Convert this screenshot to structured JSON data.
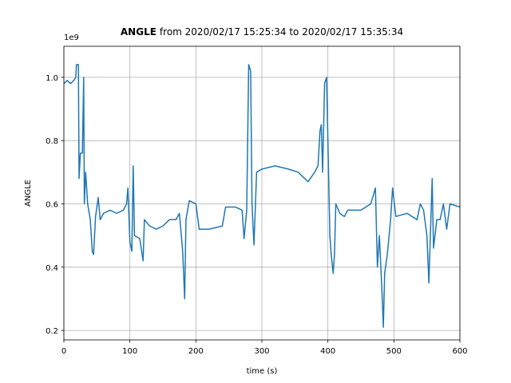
{
  "chart_data": {
    "type": "line",
    "title_parts": [
      "ANGLE",
      "from 2020/02/17 15:25:34 to 2020/02/17 15:35:34"
    ],
    "offset_label": "1e9",
    "xlabel": "time (s)",
    "ylabel": "ANGLE",
    "xlim": [
      0,
      600
    ],
    "ylim": [
      0.17,
      1.098
    ],
    "xticks": [
      0,
      100,
      200,
      300,
      400,
      500,
      600
    ],
    "yticks": [
      0.2,
      0.4,
      0.6,
      0.8,
      {
        "value": 1,
        "label": "1.0"
      }
    ],
    "grid": true,
    "series": [
      {
        "name": "ANGLE",
        "color": "#1f77b4",
        "x": [
          0,
          5,
          10,
          15,
          18,
          19,
          22,
          23,
          25,
          28,
          30,
          31,
          33,
          36,
          40,
          43,
          45,
          48,
          52,
          55,
          60,
          70,
          80,
          90,
          95,
          97,
          100,
          103,
          105,
          107,
          115,
          120,
          122,
          130,
          140,
          150,
          160,
          170,
          175,
          180,
          183,
          185,
          190,
          200,
          205,
          220,
          240,
          245,
          260,
          270,
          273,
          277,
          280,
          283,
          285,
          288,
          292,
          300,
          320,
          340,
          355,
          360,
          370,
          380,
          385,
          388,
          390,
          392,
          395,
          398,
          400,
          403,
          405,
          408,
          410,
          412,
          418,
          425,
          430,
          450,
          465,
          472,
          475,
          478,
          482,
          484,
          486,
          490,
          495,
          498,
          503,
          520,
          535,
          540,
          545,
          550,
          553,
          556,
          558,
          560,
          565,
          570,
          575,
          580,
          585,
          600
        ],
        "values": [
          0.98,
          0.99,
          0.98,
          0.99,
          1.0,
          1.04,
          1.04,
          0.68,
          0.76,
          0.76,
          1.0,
          0.6,
          0.7,
          0.6,
          0.55,
          0.45,
          0.44,
          0.56,
          0.62,
          0.55,
          0.57,
          0.58,
          0.57,
          0.58,
          0.6,
          0.65,
          0.48,
          0.45,
          0.72,
          0.5,
          0.49,
          0.42,
          0.55,
          0.53,
          0.52,
          0.53,
          0.55,
          0.55,
          0.57,
          0.45,
          0.3,
          0.55,
          0.61,
          0.6,
          0.52,
          0.52,
          0.53,
          0.59,
          0.59,
          0.58,
          0.49,
          0.58,
          1.04,
          1.02,
          0.6,
          0.47,
          0.7,
          0.71,
          0.72,
          0.71,
          0.7,
          0.69,
          0.67,
          0.7,
          0.72,
          0.83,
          0.85,
          0.7,
          0.98,
          1.0,
          0.8,
          0.5,
          0.44,
          0.38,
          0.44,
          0.6,
          0.57,
          0.56,
          0.58,
          0.58,
          0.6,
          0.65,
          0.4,
          0.5,
          0.32,
          0.21,
          0.38,
          0.44,
          0.55,
          0.65,
          0.56,
          0.57,
          0.55,
          0.6,
          0.58,
          0.5,
          0.35,
          0.55,
          0.68,
          0.46,
          0.55,
          0.55,
          0.6,
          0.52,
          0.6,
          0.59
        ]
      }
    ]
  }
}
